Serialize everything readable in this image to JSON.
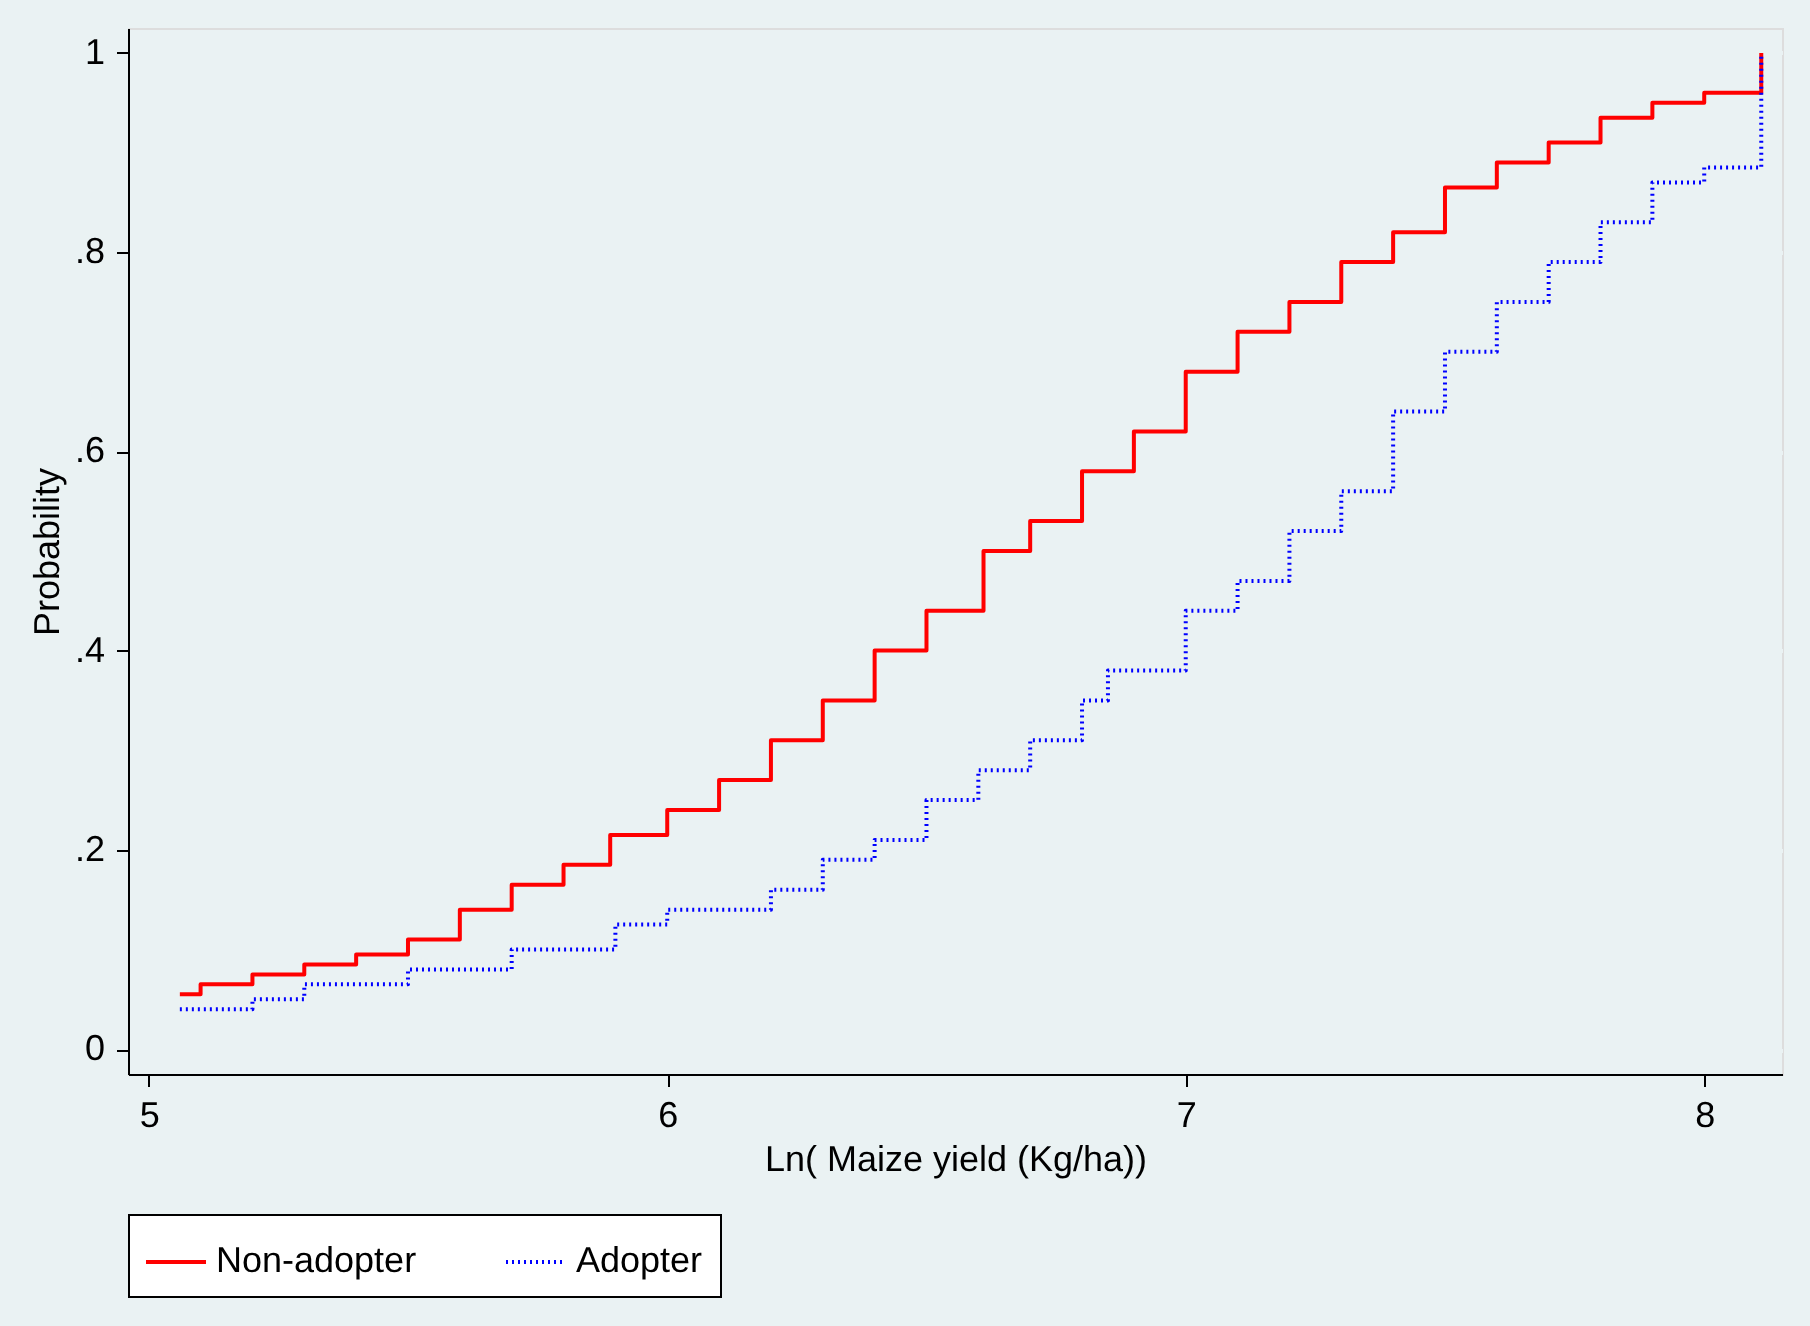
{
  "chart_data": {
    "type": "step",
    "xlabel": "Ln( Maize yield (Kg/ha))",
    "ylabel": "Probability",
    "xlim": [
      4.96,
      8.15
    ],
    "xticks": [
      5,
      6,
      7,
      8
    ],
    "ylim": [
      -0.025,
      1.025
    ],
    "yticks": [
      0,
      {
        "value": 0.2,
        "label": ".2"
      },
      {
        "value": 0.4,
        "label": ".4"
      },
      {
        "value": 0.6,
        "label": ".6"
      },
      {
        "value": 0.8,
        "label": ".8"
      },
      1
    ],
    "grid": "y",
    "legend": "bottom",
    "series": [
      {
        "name": "Non-adopter",
        "color": "#ff0000",
        "line_style": "solid",
        "x": [
          5.06,
          5.1,
          5.2,
          5.3,
          5.4,
          5.5,
          5.6,
          5.7,
          5.8,
          5.89,
          6.0,
          6.1,
          6.2,
          6.3,
          6.4,
          6.5,
          6.61,
          6.7,
          6.8,
          6.9,
          7.0,
          7.1,
          7.2,
          7.3,
          7.4,
          7.5,
          7.6,
          7.7,
          7.8,
          7.9,
          8.0,
          8.11,
          8.11
        ],
        "values": [
          0.055,
          0.065,
          0.075,
          0.085,
          0.095,
          0.11,
          0.14,
          0.165,
          0.185,
          0.215,
          0.24,
          0.27,
          0.31,
          0.35,
          0.4,
          0.44,
          0.5,
          0.53,
          0.58,
          0.62,
          0.68,
          0.72,
          0.75,
          0.79,
          0.82,
          0.865,
          0.89,
          0.91,
          0.935,
          0.95,
          0.96,
          0.97,
          1.0
        ]
      },
      {
        "name": "Adopter",
        "color": "#0000ff",
        "line_style": "dotted",
        "x": [
          5.06,
          5.2,
          5.3,
          5.5,
          5.7,
          5.9,
          6.0,
          6.2,
          6.3,
          6.4,
          6.5,
          6.6,
          6.7,
          6.8,
          6.85,
          7.0,
          7.1,
          7.2,
          7.3,
          7.4,
          7.5,
          7.6,
          7.7,
          7.8,
          7.9,
          8.0,
          8.11,
          8.11
        ],
        "values": [
          0.04,
          0.05,
          0.065,
          0.08,
          0.1,
          0.125,
          0.14,
          0.16,
          0.19,
          0.21,
          0.25,
          0.28,
          0.31,
          0.35,
          0.38,
          0.44,
          0.47,
          0.52,
          0.56,
          0.64,
          0.7,
          0.75,
          0.79,
          0.83,
          0.87,
          0.885,
          0.905,
          1.0
        ]
      }
    ]
  }
}
